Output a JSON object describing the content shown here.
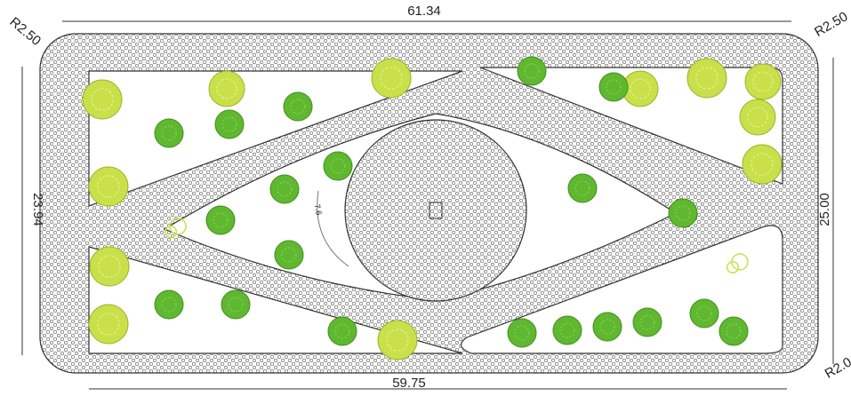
{
  "dimensions": {
    "top_width": "61.34",
    "bottom_width": "59.75",
    "left_height": "23.94",
    "right_height": "25.00",
    "radius_top_left": "R2.50",
    "radius_top_right": "R2.50",
    "radius_bottom_right": "R2.0",
    "arc_label": "7.6"
  }
}
